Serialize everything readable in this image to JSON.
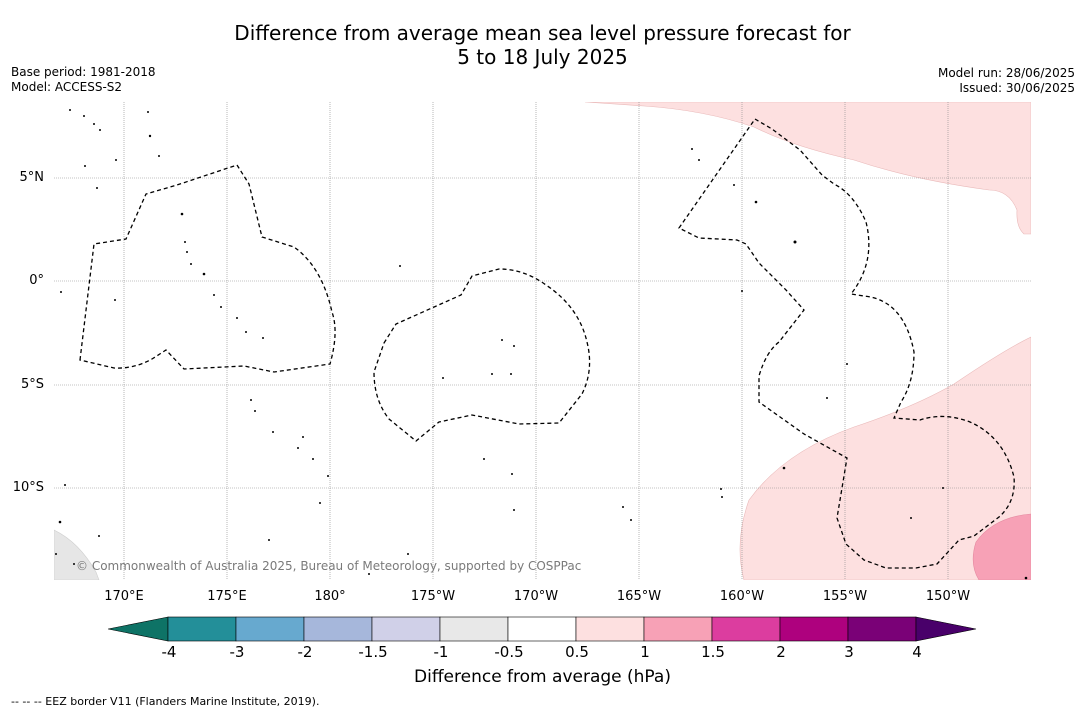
{
  "title": {
    "line1": "Difference from average mean sea level pressure forecast for",
    "line2": "5 to 18 July 2025"
  },
  "meta_left": {
    "base_period": "Base period: 1981-2018",
    "model": "Model: ACCESS-S2"
  },
  "meta_right": {
    "model_run": "Model run: 28/06/2025",
    "issued": "Issued: 30/06/2025"
  },
  "map": {
    "latitude_labels": [
      "5°N",
      "0°",
      "5°S",
      "10°S"
    ],
    "longitude_labels": [
      "170°E",
      "175°E",
      "180°",
      "175°W",
      "170°W",
      "165°W",
      "160°W",
      "155°W",
      "150°W"
    ],
    "copyright": "© Commonwealth of Australia 2025, Bureau of Meteorology, supported by COSPPac",
    "colors": {
      "anomaly_0_5_to_1": "#fde0e0",
      "anomaly_1_to_1_5": "#f7a1b6",
      "anomaly_minus_0_5_to_minus_1": "#e6e6e6",
      "gridline": "#888888",
      "eez_border": "#000000"
    }
  },
  "colorbar": {
    "title": "Difference from average (hPa)",
    "ticks": [
      "-4",
      "-3",
      "-2",
      "-1.5",
      "-1",
      "-0.5",
      "0.5",
      "1",
      "1.5",
      "2",
      "3",
      "4"
    ],
    "colors": [
      "#0e7366",
      "#238f99",
      "#67a9cf",
      "#a6b7db",
      "#d0d0e8",
      "#e8e8e8",
      "#ffffff",
      "#fde0e0",
      "#f7a1b6",
      "#dc3d9f",
      "#ae017e",
      "#7a0177",
      "#49006a"
    ]
  },
  "footnote": "--  --  -- EEZ border V11 (Flanders Marine Institute, 2019)."
}
